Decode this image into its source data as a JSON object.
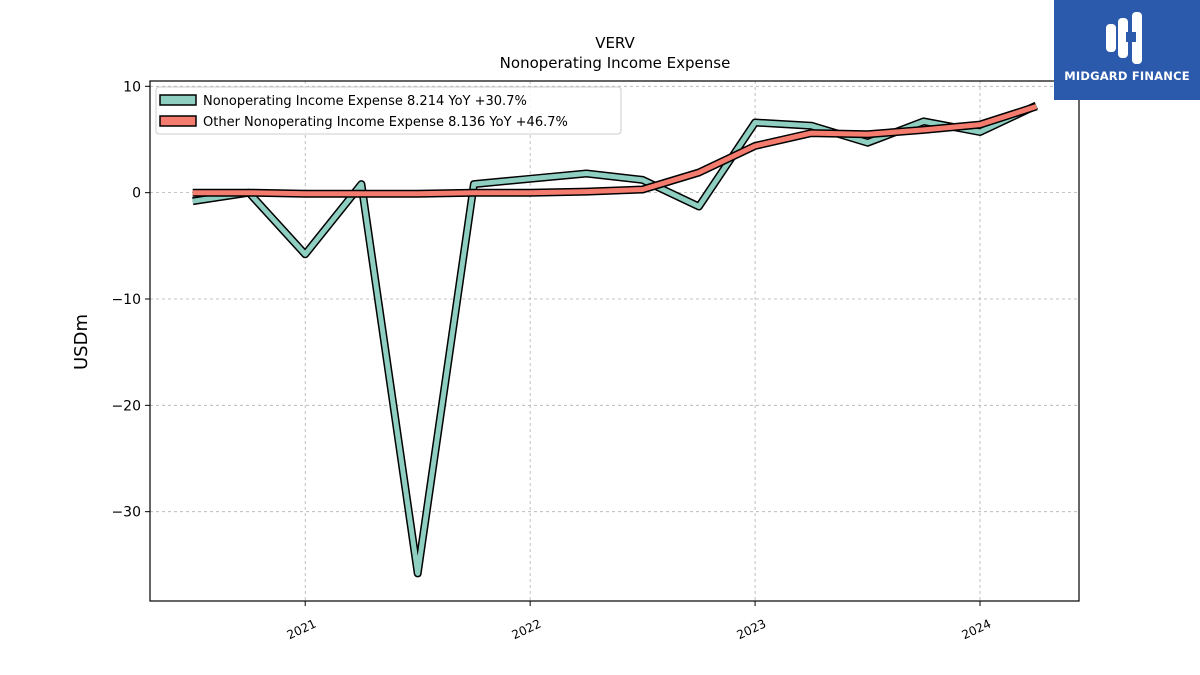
{
  "logo": {
    "name": "MIDGARD FINANCE"
  },
  "chart_data": {
    "type": "line",
    "title": "VERV",
    "subtitle": "Nonoperating Income Expense",
    "xlabel": "",
    "ylabel": "USDm",
    "x_ticks": [
      "2021",
      "2022",
      "2023",
      "2024"
    ],
    "x_tick_years": [
      2021,
      2022,
      2023,
      2024
    ],
    "xlim": [
      2020.31,
      2024.44
    ],
    "ylim": [
      -38.4,
      10.5
    ],
    "y_ticks": [
      10,
      0,
      -10,
      -20,
      -30
    ],
    "y_tick_labels": [
      "10",
      "0",
      "−10",
      "−20",
      "−30"
    ],
    "grid": true,
    "legend_position": "top-left",
    "x": [
      "2020-06-30",
      "2020-09-30",
      "2020-12-31",
      "2021-03-31",
      "2021-06-30",
      "2021-09-30",
      "2021-12-31",
      "2022-03-31",
      "2022-06-30",
      "2022-09-30",
      "2022-12-31",
      "2023-03-31",
      "2023-06-30",
      "2023-09-30",
      "2023-12-31",
      "2024-03-31"
    ],
    "x_years": [
      2020.5,
      2020.75,
      2021.0,
      2021.25,
      2021.5,
      2021.75,
      2022.0,
      2022.25,
      2022.5,
      2022.75,
      2023.0,
      2023.25,
      2023.5,
      2023.75,
      2024.0,
      2024.25
    ],
    "series": [
      {
        "name": "Nonoperating Income Expense",
        "legend_label": "Nonoperating Income Expense  8.214 YoY +30.7%",
        "color": "#8ecfc2",
        "values": [
          -0.8,
          0.0,
          -5.8,
          0.8,
          -35.8,
          0.8,
          1.3,
          1.8,
          1.2,
          -1.3,
          6.6,
          6.3,
          4.7,
          6.7,
          5.7,
          8.2
        ]
      },
      {
        "name": "Other Nonoperating Income Expense",
        "legend_label": "Other Nonoperating Income Expense  8.136 YoY +46.7%",
        "color": "#f47c6e",
        "values": [
          0.0,
          0.0,
          -0.1,
          -0.1,
          -0.1,
          0.0,
          0.0,
          0.1,
          0.3,
          1.9,
          4.4,
          5.6,
          5.5,
          5.9,
          6.4,
          8.1
        ]
      }
    ]
  }
}
